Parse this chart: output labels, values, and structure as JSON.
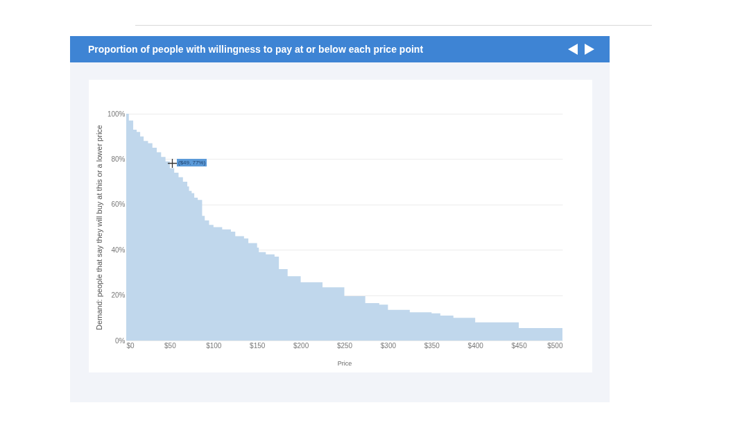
{
  "chart_data": {
    "type": "area",
    "title": "Proportion of people with willingness to pay at or below each price point",
    "xlabel": "Price",
    "ylabel": "Demand: people that say they will buy at this or a lower price",
    "x": [
      0,
      3,
      8,
      12,
      16,
      20,
      25,
      30,
      35,
      40,
      45,
      50,
      55,
      60,
      65,
      70,
      72,
      75,
      78,
      82,
      87,
      90,
      95,
      100,
      110,
      120,
      125,
      135,
      140,
      150,
      152,
      160,
      170,
      175,
      185,
      200,
      225,
      250,
      274,
      290,
      300,
      325,
      350,
      360,
      375,
      400,
      450,
      500
    ],
    "series": [
      {
        "color": "#c0d7ec",
        "values": [
          100,
          97,
          93,
          92,
          90,
          88,
          87,
          85,
          83,
          81,
          79,
          76,
          74,
          72,
          70,
          68,
          66,
          65,
          63,
          62,
          55,
          53,
          51,
          50,
          49,
          48,
          46,
          45,
          43,
          41,
          39,
          38,
          37,
          31.5,
          28.4,
          25.7,
          23.5,
          19.6,
          16.5,
          15.8,
          13.5,
          12.5,
          12,
          11,
          10,
          8,
          5.5,
          5.5
        ]
      }
    ],
    "xlim": [
      0,
      500
    ],
    "ylim": [
      0,
      100
    ],
    "xticks": [
      {
        "value": 0,
        "label": "$0"
      },
      {
        "value": 50,
        "label": "$50"
      },
      {
        "value": 100,
        "label": "$100"
      },
      {
        "value": 150,
        "label": "$150"
      },
      {
        "value": 200,
        "label": "$200"
      },
      {
        "value": 250,
        "label": "$250"
      },
      {
        "value": 300,
        "label": "$300"
      },
      {
        "value": 350,
        "label": "$350"
      },
      {
        "value": 400,
        "label": "$400"
      },
      {
        "value": 450,
        "label": "$450"
      },
      {
        "value": 500,
        "label": "$500"
      }
    ],
    "yticks": [
      {
        "value": 0,
        "label": "0%"
      },
      {
        "value": 20,
        "label": "20%"
      },
      {
        "value": 40,
        "label": "40%"
      },
      {
        "value": 60,
        "label": "60%"
      },
      {
        "value": 80,
        "label": "80%"
      },
      {
        "value": 100,
        "label": "100%"
      }
    ],
    "grid": "y",
    "annotations": [
      "($49, 77%)"
    ]
  }
}
